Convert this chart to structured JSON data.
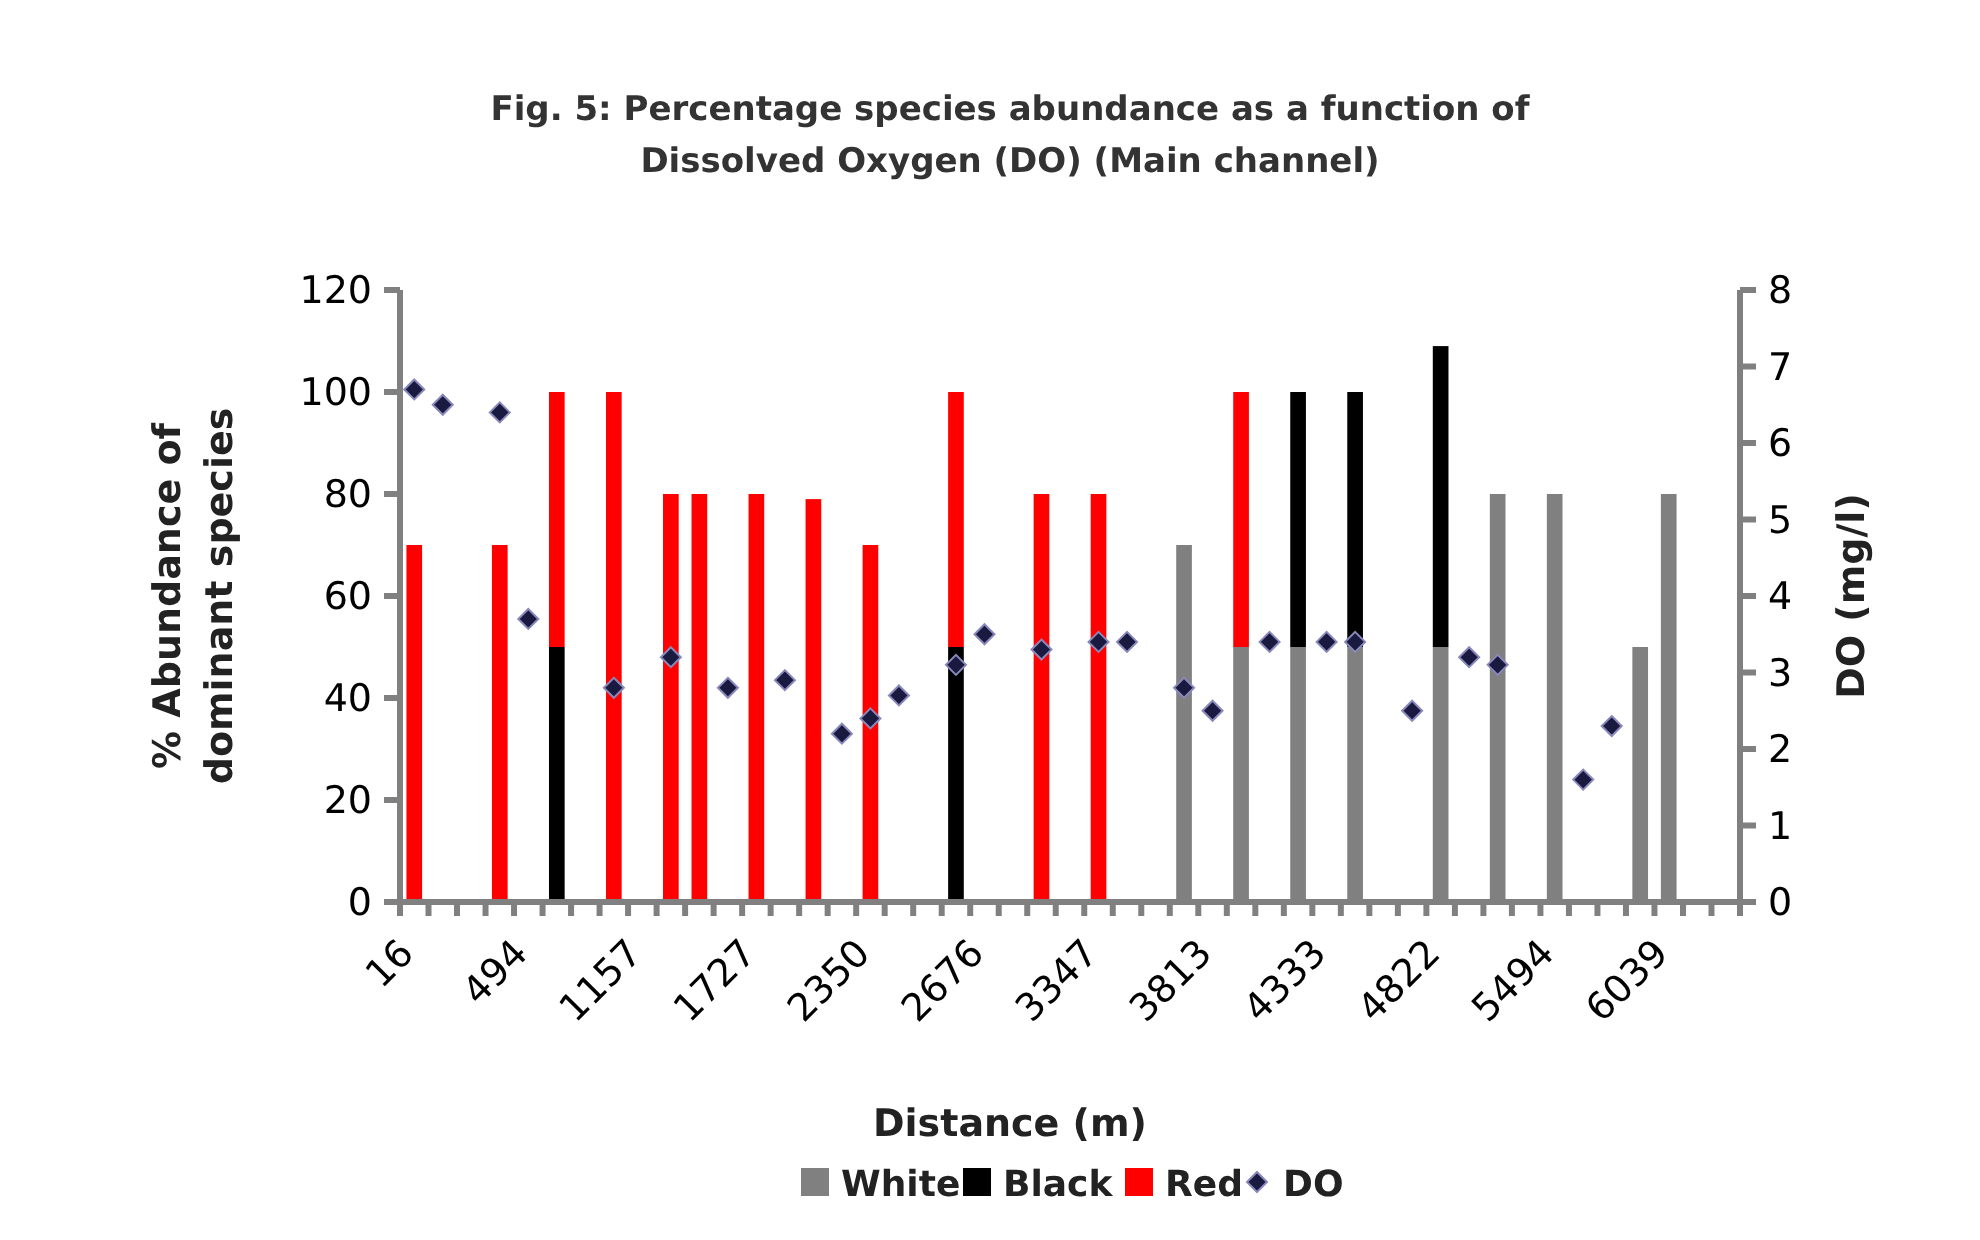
{
  "chart_data": {
    "type": "bar",
    "title": "Fig. 5: Percentage species abundance as a function of Dissolved Oxygen (DO) (Main channel)",
    "xlabel": "Distance (m)",
    "ylabel": "% Abundance of dominant species",
    "y2label": "DO (mg/l)",
    "categories": [
      "16",
      null,
      null,
      null,
      "494",
      null,
      null,
      null,
      "1157",
      null,
      null,
      null,
      "1727",
      null,
      null,
      null,
      "2350",
      null,
      null,
      null,
      "2676",
      null,
      null,
      null,
      "3347",
      null,
      null,
      null,
      "3813",
      null,
      null,
      null,
      "4333",
      null,
      null,
      null,
      "4822",
      null,
      null,
      null,
      "5494",
      null,
      null,
      null,
      "6039",
      null,
      null
    ],
    "stacked": true,
    "ylim": [
      0,
      120
    ],
    "yticks": [
      0,
      20,
      40,
      60,
      80,
      100,
      120
    ],
    "y2lim": [
      0,
      8
    ],
    "y2ticks": [
      0,
      1,
      2,
      3,
      4,
      5,
      6,
      7,
      8
    ],
    "grid": false,
    "legend": "bottom",
    "series": [
      {
        "name": "White",
        "color": "#808080",
        "values": [
          null,
          null,
          null,
          null,
          null,
          null,
          null,
          null,
          null,
          null,
          null,
          null,
          null,
          null,
          null,
          null,
          null,
          null,
          null,
          null,
          null,
          null,
          null,
          null,
          null,
          null,
          null,
          70,
          null,
          50,
          null,
          50,
          null,
          50,
          null,
          null,
          50,
          null,
          80,
          null,
          80,
          null,
          null,
          50,
          80,
          null,
          null
        ]
      },
      {
        "name": "Black",
        "color": "#000000",
        "values": [
          null,
          null,
          null,
          null,
          null,
          50,
          null,
          null,
          null,
          null,
          null,
          null,
          null,
          null,
          null,
          null,
          null,
          null,
          null,
          50,
          null,
          null,
          null,
          null,
          null,
          null,
          null,
          null,
          null,
          null,
          null,
          50,
          null,
          50,
          null,
          null,
          59,
          null,
          null,
          null,
          null,
          null,
          null,
          null,
          null,
          null,
          null
        ]
      },
      {
        "name": "Red",
        "color": "#ff0000",
        "values": [
          70,
          null,
          null,
          70,
          null,
          50,
          null,
          100,
          null,
          80,
          80,
          null,
          80,
          null,
          79,
          null,
          70,
          null,
          null,
          50,
          null,
          null,
          80,
          null,
          80,
          null,
          null,
          null,
          null,
          50,
          null,
          null,
          null,
          null,
          null,
          null,
          null,
          null,
          null,
          null,
          null,
          null,
          null,
          null,
          null,
          null,
          null
        ]
      },
      {
        "name": "DO",
        "type": "scatter",
        "axis": "y2",
        "marker": "diamond",
        "color": "#1a1a40",
        "values": [
          6.7,
          6.5,
          null,
          6.4,
          3.7,
          null,
          null,
          2.8,
          null,
          3.2,
          null,
          2.8,
          null,
          2.9,
          null,
          2.2,
          2.4,
          2.7,
          null,
          3.1,
          3.5,
          null,
          3.3,
          null,
          3.4,
          3.4,
          null,
          2.8,
          2.5,
          null,
          3.4,
          null,
          3.4,
          3.4,
          null,
          2.5,
          null,
          3.2,
          3.1,
          null,
          null,
          1.6,
          2.3,
          null,
          null,
          null,
          null
        ]
      }
    ]
  }
}
